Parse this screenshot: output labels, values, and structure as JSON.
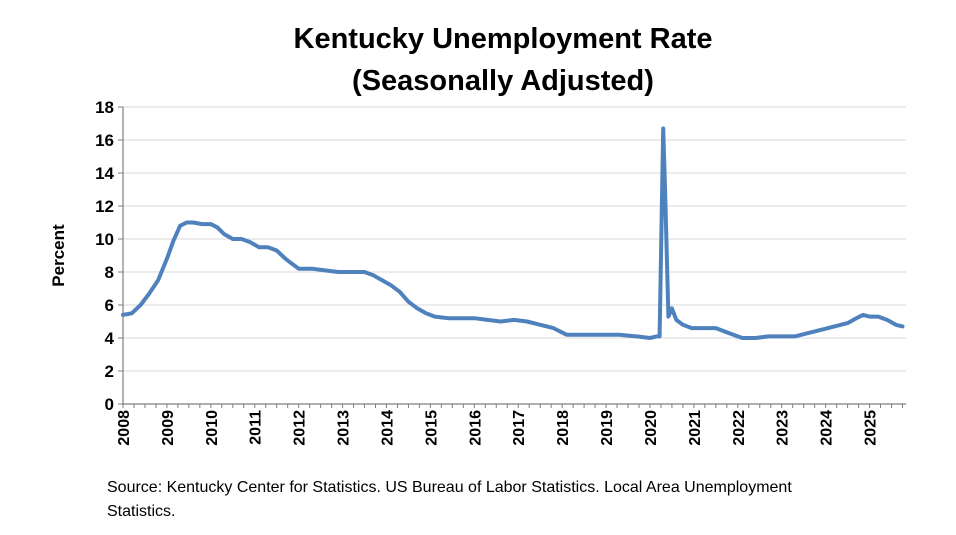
{
  "chart_data": {
    "type": "line",
    "title": "Kentucky Unemployment Rate",
    "subtitle": "(Seasonally Adjusted)",
    "xlabel": "",
    "ylabel": "Percent",
    "ylim": [
      0,
      18
    ],
    "yticks": [
      "0",
      "2",
      "4",
      "6",
      "8",
      "10",
      "12",
      "14",
      "16",
      "18"
    ],
    "xlim": [
      2008,
      2025.83
    ],
    "xticks": [
      "2008",
      "2009",
      "2010",
      "2011",
      "2012",
      "2013",
      "2014",
      "2015",
      "2016",
      "2017",
      "2018",
      "2019",
      "2020",
      "2021",
      "2022",
      "2023",
      "2024",
      "2025"
    ],
    "grid": true,
    "legend": "none",
    "line_color": "#4f81bd",
    "series": [
      {
        "name": "Kentucky Unemployment Rate",
        "x": [
          2008.0,
          2008.2,
          2008.4,
          2008.6,
          2008.8,
          2009.0,
          2009.15,
          2009.3,
          2009.45,
          2009.6,
          2009.8,
          2010.0,
          2010.15,
          2010.3,
          2010.5,
          2010.7,
          2010.9,
          2011.1,
          2011.3,
          2011.5,
          2011.7,
          2011.85,
          2012.0,
          2012.15,
          2012.3,
          2012.6,
          2012.9,
          2013.2,
          2013.5,
          2013.7,
          2013.9,
          2014.1,
          2014.3,
          2014.5,
          2014.7,
          2014.9,
          2015.1,
          2015.4,
          2015.7,
          2016.0,
          2016.3,
          2016.6,
          2016.9,
          2017.2,
          2017.5,
          2017.8,
          2018.1,
          2018.5,
          2018.9,
          2019.3,
          2019.7,
          2020.0,
          2020.15,
          2020.22,
          2020.3,
          2020.35,
          2020.42,
          2020.5,
          2020.6,
          2020.75,
          2020.95,
          2021.2,
          2021.5,
          2021.8,
          2022.1,
          2022.4,
          2022.7,
          2023.0,
          2023.3,
          2023.6,
          2023.9,
          2024.2,
          2024.5,
          2024.7,
          2024.85,
          2025.0,
          2025.2,
          2025.4,
          2025.6,
          2025.75
        ],
        "values": [
          5.4,
          5.5,
          6.0,
          6.7,
          7.5,
          8.8,
          9.9,
          10.8,
          11.0,
          11.0,
          10.9,
          10.9,
          10.7,
          10.3,
          10.0,
          10.0,
          9.8,
          9.5,
          9.5,
          9.3,
          8.8,
          8.5,
          8.2,
          8.2,
          8.2,
          8.1,
          8.0,
          8.0,
          8.0,
          7.8,
          7.5,
          7.2,
          6.8,
          6.2,
          5.8,
          5.5,
          5.3,
          5.2,
          5.2,
          5.2,
          5.1,
          5.0,
          5.1,
          5.0,
          4.8,
          4.6,
          4.2,
          4.2,
          4.2,
          4.2,
          4.1,
          4.0,
          4.1,
          4.1,
          16.7,
          12.5,
          5.3,
          5.8,
          5.1,
          4.8,
          4.6,
          4.6,
          4.6,
          4.3,
          4.0,
          4.0,
          4.1,
          4.1,
          4.1,
          4.3,
          4.5,
          4.7,
          4.9,
          5.2,
          5.4,
          5.3,
          5.3,
          5.1,
          4.8,
          4.7
        ]
      }
    ],
    "source_note": "Source: Kentucky Center for Statistics. US Bureau of Labor Statistics. Local Area Unemployment Statistics."
  }
}
